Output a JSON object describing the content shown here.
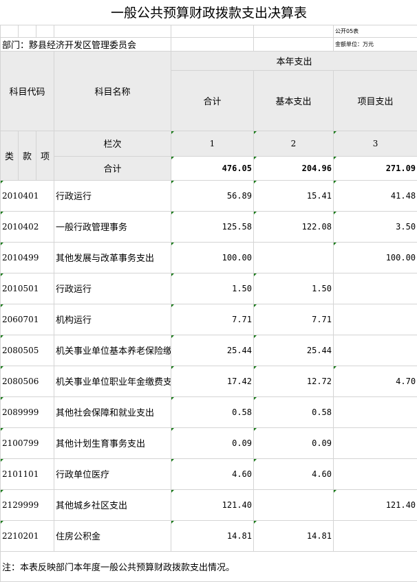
{
  "title": "一般公共预算财政拨款支出决算表",
  "form_no": "公开05表",
  "department": "部门：黟县经济开发区管理委员会",
  "unit": "金额单位：万元",
  "header": {
    "subject_code": "科目代码",
    "subject_name": "科目名称",
    "current_year": "本年支出",
    "total": "合计",
    "basic": "基本支出",
    "project": "项目支出",
    "lei": "类",
    "kuan": "款",
    "xiang": "项",
    "column_no": "栏次",
    "col1": "1",
    "col2": "2",
    "col3": "3",
    "sum_label": "合计",
    "sum_total": "476.05",
    "sum_basic": "204.96",
    "sum_project": "271.09"
  },
  "rows": [
    {
      "code": "2010401",
      "name": "行政运行",
      "total": "56.89",
      "basic": "15.41",
      "project": "41.48"
    },
    {
      "code": "2010402",
      "name": "一般行政管理事务",
      "total": "125.58",
      "basic": "122.08",
      "project": "3.50"
    },
    {
      "code": "2010499",
      "name": "其他发展与改革事务支出",
      "total": "100.00",
      "basic": "",
      "project": "100.00"
    },
    {
      "code": "2010501",
      "name": "行政运行",
      "total": "1.50",
      "basic": "1.50",
      "project": ""
    },
    {
      "code": "2060701",
      "name": "机构运行",
      "total": "7.71",
      "basic": "7.71",
      "project": ""
    },
    {
      "code": "2080505",
      "name": "机关事业单位基本养老保险缴费",
      "total": "25.44",
      "basic": "25.44",
      "project": ""
    },
    {
      "code": "2080506",
      "name": "机关事业单位职业年金缴费支出",
      "total": "17.42",
      "basic": "12.72",
      "project": "4.70"
    },
    {
      "code": "2089999",
      "name": "其他社会保障和就业支出",
      "total": "0.58",
      "basic": "0.58",
      "project": ""
    },
    {
      "code": "2100799",
      "name": "其他计划生育事务支出",
      "total": "0.09",
      "basic": "0.09",
      "project": ""
    },
    {
      "code": "2101101",
      "name": "行政单位医疗",
      "total": "4.60",
      "basic": "4.60",
      "project": ""
    },
    {
      "code": "2129999",
      "name": "其他城乡社区支出",
      "total": "121.40",
      "basic": "",
      "project": "121.40"
    },
    {
      "code": "2210201",
      "name": "住房公积金",
      "total": "14.81",
      "basic": "14.81",
      "project": ""
    }
  ],
  "note": "注：本表反映部门本年度一般公共预算财政拨款支出情况。"
}
